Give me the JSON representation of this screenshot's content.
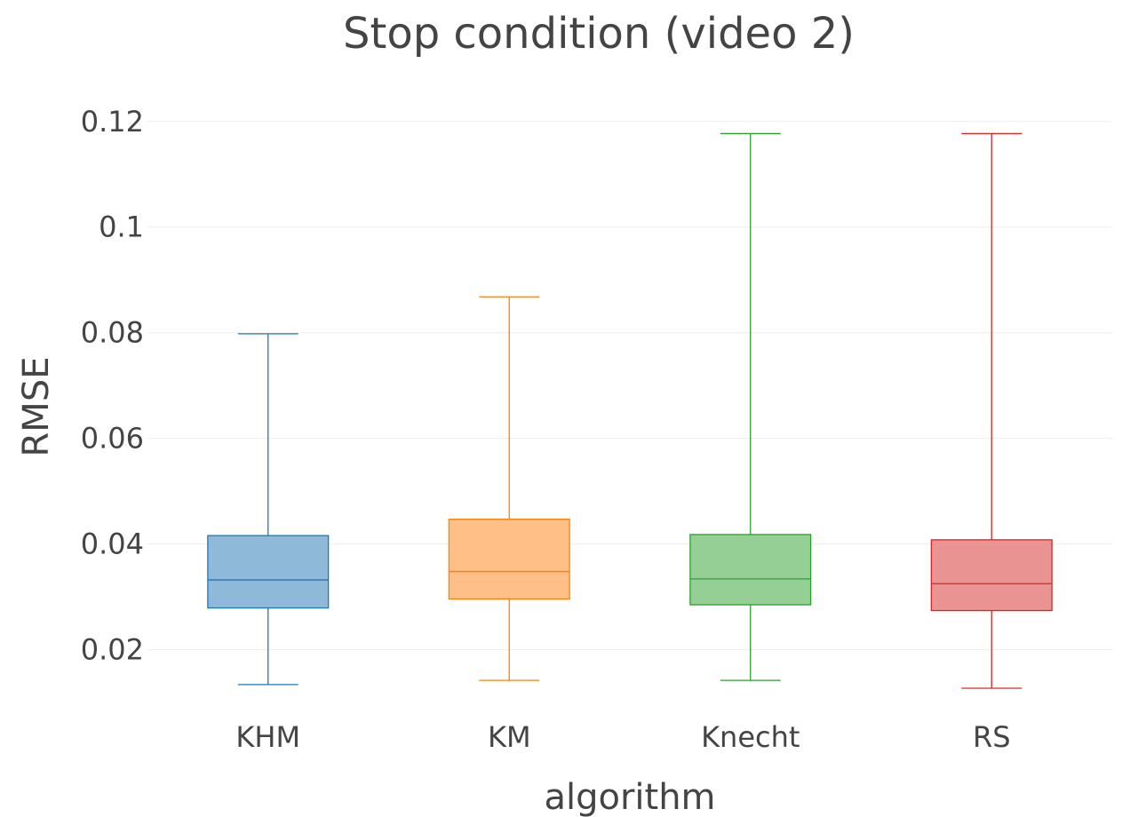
{
  "chart_data": {
    "type": "box",
    "title": "Stop condition (video 2)",
    "xlabel": "algorithm",
    "ylabel": "RMSE",
    "ylim": [
      0.0085,
      0.1245
    ],
    "yticks": [
      0.02,
      0.04,
      0.06,
      0.08,
      0.1,
      0.12
    ],
    "ytick_labels": [
      "0.02",
      "0.04",
      "0.06",
      "0.08",
      "0.1",
      "0.12"
    ],
    "grid": true,
    "legend": "none",
    "categories": [
      "KHM",
      "KM",
      "Knecht",
      "RS"
    ],
    "series": [
      {
        "category": "KHM",
        "color": "#1f77b4",
        "fill": "#8fb9d9",
        "min": 0.0134,
        "q1": 0.0279,
        "median": 0.0332,
        "q3": 0.0416,
        "max": 0.0798
      },
      {
        "category": "KM",
        "color": "#ff7f0e",
        "fill": "#ffbf86",
        "min": 0.0142,
        "q1": 0.0296,
        "median": 0.0348,
        "q3": 0.0447,
        "max": 0.0868
      },
      {
        "category": "Knecht",
        "color": "#2ca02c",
        "fill": "#95cf95",
        "min": 0.0142,
        "q1": 0.0285,
        "median": 0.0334,
        "q3": 0.0418,
        "max": 0.1177
      },
      {
        "category": "RS",
        "color": "#d62728",
        "fill": "#ea9393",
        "min": 0.0127,
        "q1": 0.0274,
        "median": 0.0325,
        "q3": 0.0408,
        "max": 0.1177
      }
    ]
  }
}
